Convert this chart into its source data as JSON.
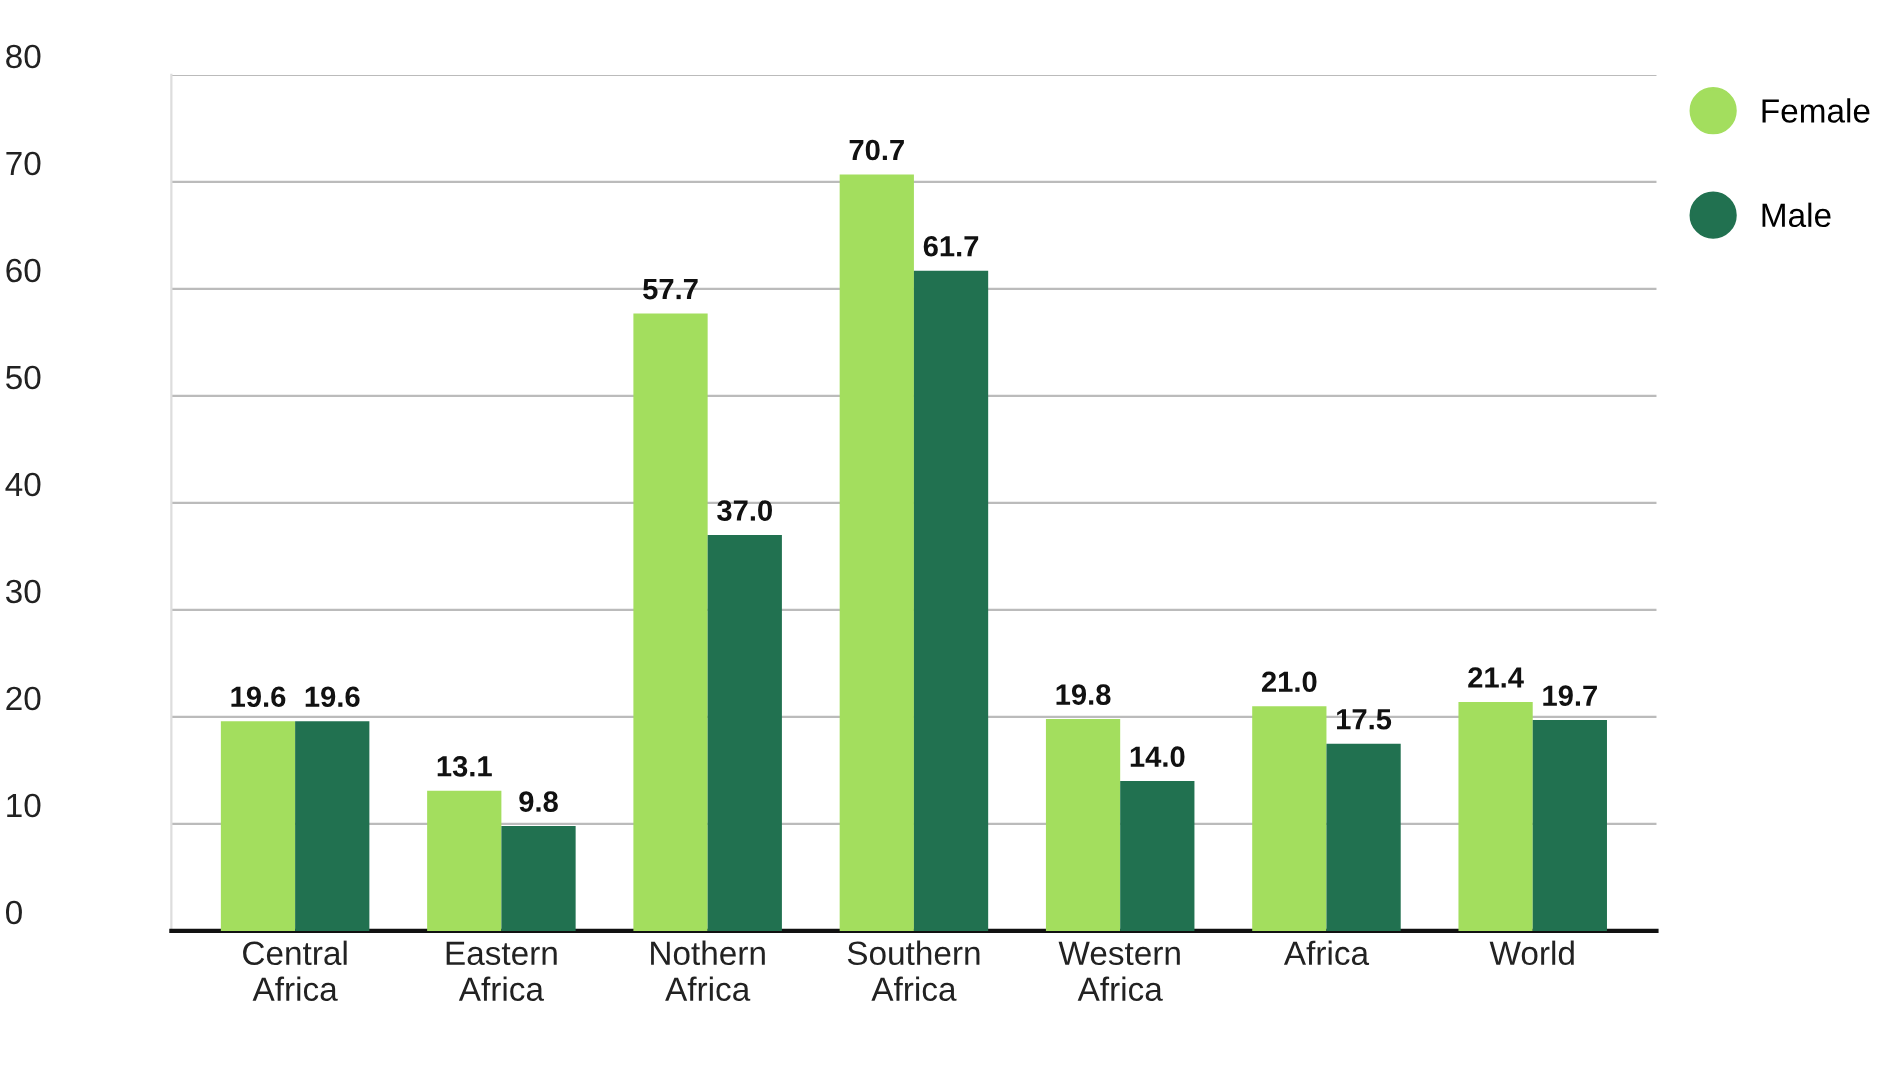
{
  "chart_data": {
    "type": "bar",
    "categories": [
      "Central Africa",
      "Eastern Africa",
      "Nothern Africa",
      "Southern Africa",
      "Western Africa",
      "Africa",
      "World"
    ],
    "series": [
      {
        "name": "Female",
        "color": "#a3de5e",
        "values": [
          19.6,
          13.1,
          57.7,
          70.7,
          19.8,
          21.0,
          21.4
        ],
        "value_labels": [
          "19.6",
          "13.1",
          "57.7",
          "70.7",
          "19.8",
          "21.0",
          "21.4"
        ]
      },
      {
        "name": "Male",
        "color": "#217150",
        "values": [
          19.6,
          9.8,
          37.0,
          61.7,
          14.0,
          17.5,
          19.7
        ],
        "value_labels": [
          "19.6",
          "9.8",
          "37.0",
          "61.7",
          "14.0",
          "17.5",
          "19.7"
        ]
      }
    ],
    "ylim": [
      0,
      80
    ],
    "yticks": [
      0,
      10,
      20,
      30,
      40,
      50,
      60,
      70,
      80
    ],
    "grid": "y",
    "legend": "right"
  }
}
